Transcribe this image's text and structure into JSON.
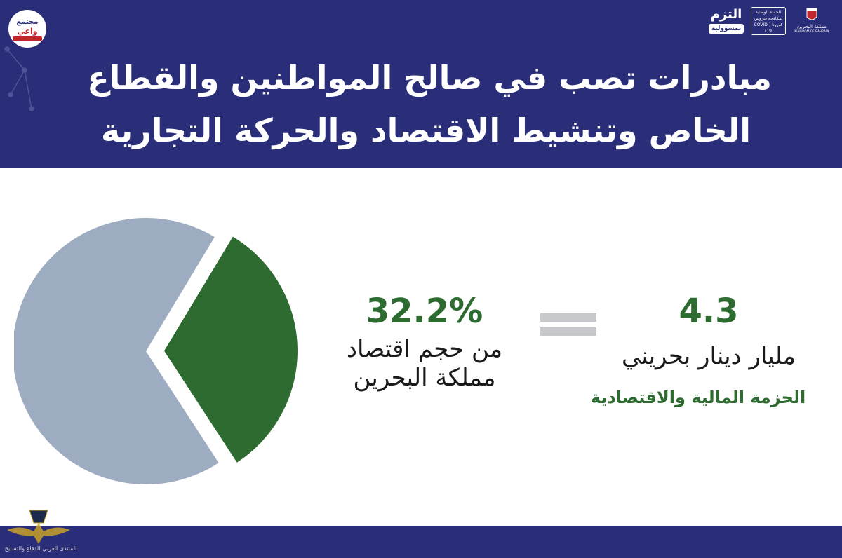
{
  "header": {
    "title_line1": "مبادرات تصب في صالح المواطنين والقطاع",
    "title_line2": "الخاص وتنشيط الاقتصاد والحركة التجارية",
    "logo_left": {
      "line1": "مجتمع",
      "line2": "واعي"
    },
    "iltazim": {
      "main": "التزم",
      "sub": "بمسؤولية"
    },
    "campaign": "الحملة الوطنية لمكافحة فيروس كورونا (COVID-19)",
    "kingdom": {
      "ar": "مملكة البحرين",
      "en": "KINGDOM OF BAHRAIN"
    }
  },
  "stats": {
    "percentage": "32.2%",
    "percentage_desc_line1": "من حجم اقتصاد",
    "percentage_desc_line2": "مملكة البحرين",
    "amount": "4.3",
    "amount_desc": "مليار دينار بحريني",
    "package_label": "الحزمة المالية والاقتصادية"
  },
  "chart_data": {
    "type": "pie",
    "slices": [
      {
        "value": 32.2,
        "color": "#2e6b31",
        "exploded": true
      },
      {
        "value": 67.8,
        "color": "#9eacc2"
      }
    ]
  },
  "watermark": {
    "text": "المنتدى العربي للدفاع والتسليح"
  },
  "colors": {
    "navy": "#2a2d78",
    "green": "#2e6b31",
    "gray_blue": "#9eacc2",
    "equals_gray": "#c6c8cb"
  }
}
